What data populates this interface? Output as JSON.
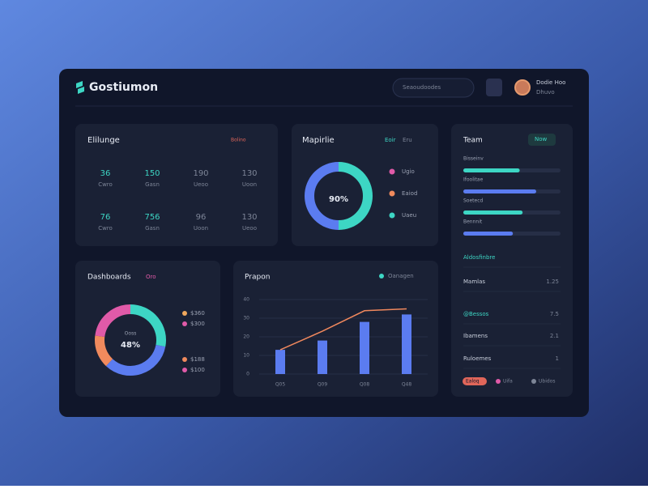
{
  "header": {
    "brand": "Gostiumon",
    "search": "Seaoudoodes",
    "user_name": "Dodie Hoo",
    "user_role": "Dhuvo"
  },
  "stats": {
    "title": "Elilunge",
    "link": "Bolino",
    "items": [
      {
        "value": "36",
        "label": "Cwro"
      },
      {
        "value": "150",
        "label": "Gasn"
      },
      {
        "value": "190",
        "label": "Ueoo"
      },
      {
        "value": "130",
        "label": "Uoon"
      },
      {
        "value": "76",
        "label": "Cwro"
      },
      {
        "value": "756",
        "label": "Gasn"
      },
      {
        "value": "96",
        "label": "Uoon"
      },
      {
        "value": "130",
        "label": "Ueoo"
      }
    ]
  },
  "status": {
    "title": "Mapirlie",
    "chips": [
      "Eoir",
      "Eru"
    ],
    "center_label": "90%",
    "ring": {
      "values": [
        50,
        50
      ],
      "colors": [
        "#3dd6c4",
        "#5b7cf0"
      ]
    },
    "legend": [
      {
        "name": "Ugio",
        "color": "#e05aa8"
      },
      {
        "name": "Eaiod",
        "color": "#f08a5d"
      },
      {
        "name": "Uaeu",
        "color": "#3dd6c4"
      }
    ]
  },
  "team": {
    "title": "Team",
    "button": "Now",
    "bars": [
      {
        "name": "Bisseinv",
        "value": 58
      },
      {
        "name": "Ifoolitae",
        "value": 75
      },
      {
        "name": "Soetecd",
        "value": 61
      },
      {
        "name": "Bennnit",
        "value": 51
      }
    ],
    "rows": [
      {
        "name": "Aldosfinbre",
        "value": ""
      },
      {
        "name": "Mamlas",
        "value": "1.25"
      },
      {
        "name": "@Bessos",
        "value": "7.5"
      },
      {
        "name": "Ibamens",
        "value": "2.1"
      },
      {
        "name": "Ruloemes",
        "value": "1"
      }
    ],
    "footer": [
      "Ealoq",
      "Uifa",
      "Ubidos"
    ]
  },
  "breakdown": {
    "title": "Dashboards",
    "tag": "Oro",
    "center_top": "Ooss",
    "center_label": "48%",
    "ring": {
      "values": [
        28,
        34,
        15,
        23
      ],
      "colors": [
        "#3dd6c4",
        "#5b7cf0",
        "#f08a5d",
        "#e05aa8"
      ]
    },
    "legend": [
      {
        "name": "$360",
        "color": "#f0a85d"
      },
      {
        "name": "$300",
        "color": "#e05aa8"
      },
      {
        "name": "$188",
        "color": "#f08a5d"
      },
      {
        "name": "$100",
        "color": "#e05aa8"
      }
    ]
  },
  "chart_data": {
    "type": "bar",
    "title": "Prapon",
    "categories": [
      "Q05",
      "Q09",
      "Q08",
      "Q48"
    ],
    "series": [
      {
        "name": "Oanagen",
        "color": "#5b7cf0",
        "values": [
          13,
          18,
          28,
          32
        ]
      },
      {
        "color": "#f0885d",
        "values": [
          13,
          23,
          34,
          35
        ]
      }
    ],
    "legend_color": "#3dd6c4",
    "ylim": [
      0,
      40
    ],
    "yticks": [
      0,
      10,
      20,
      30,
      40
    ],
    "grid": true
  }
}
